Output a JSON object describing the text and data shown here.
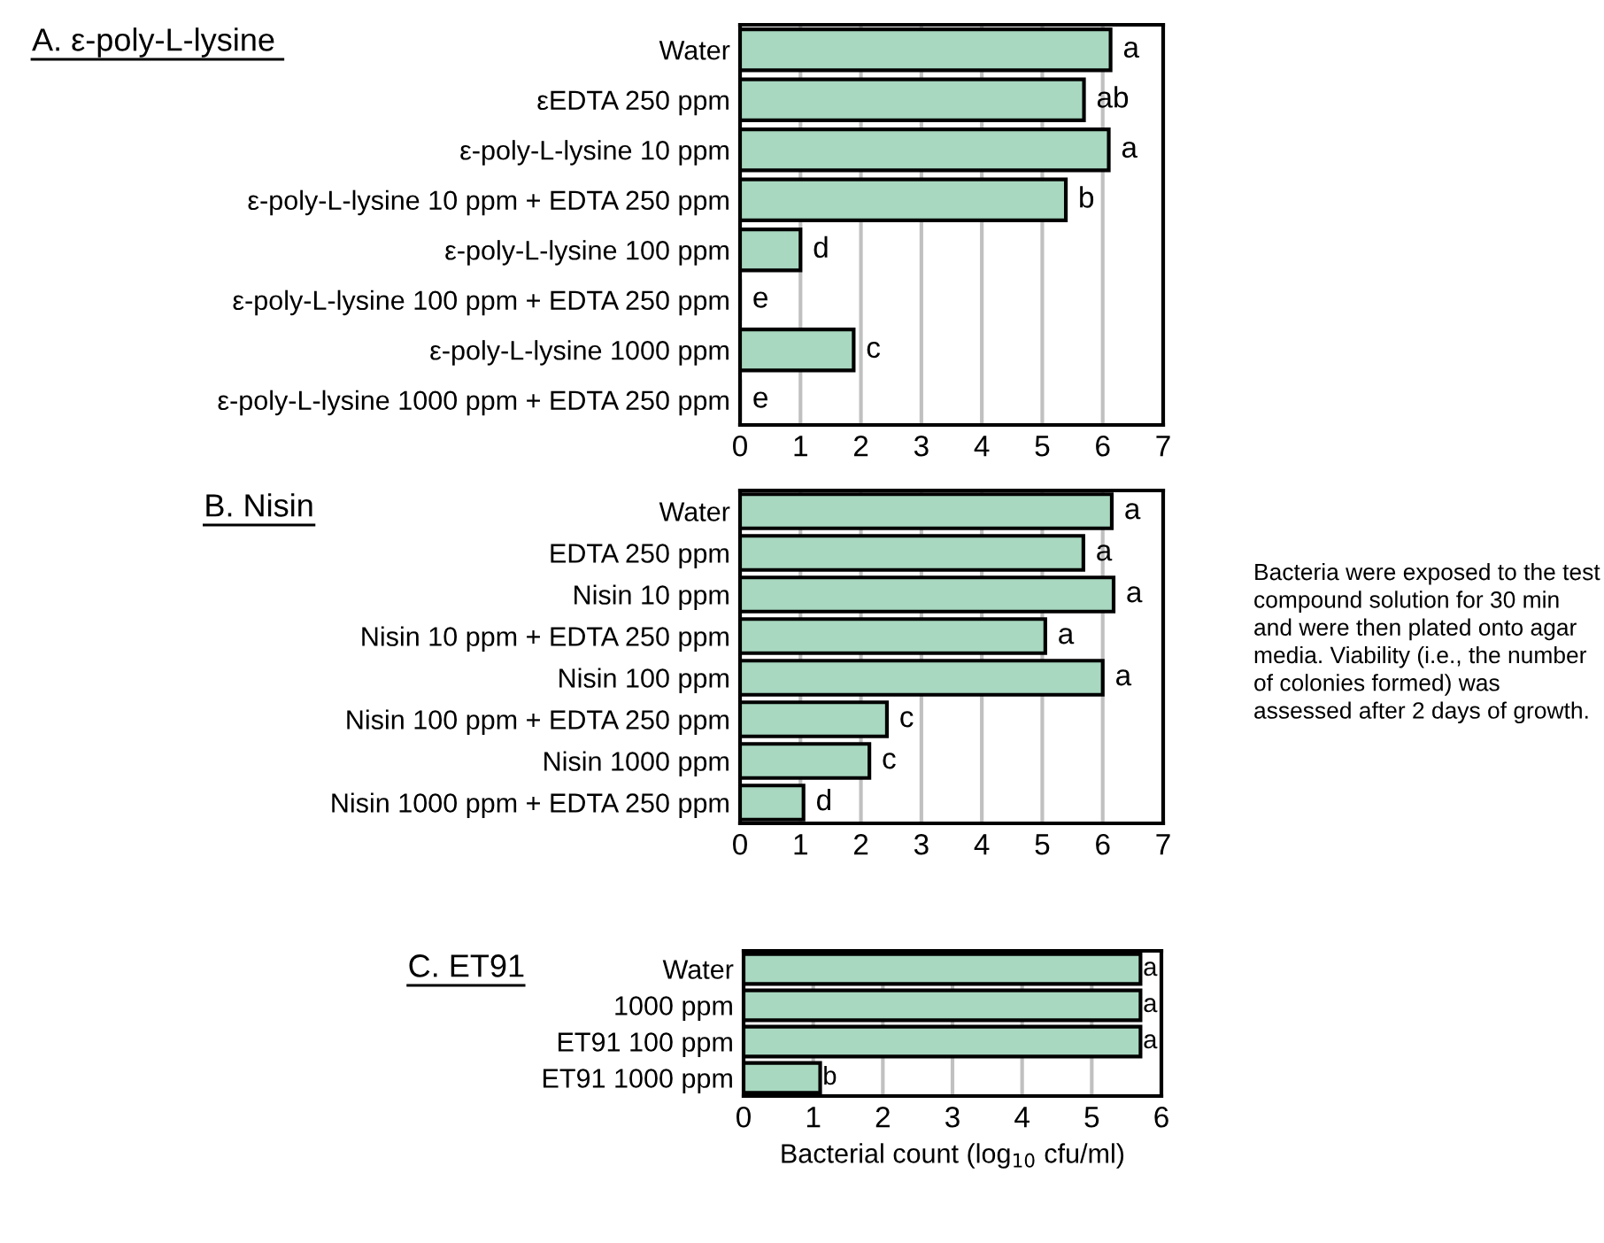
{
  "chart_data": [
    {
      "type": "bar",
      "orientation": "horizontal",
      "title": "A. ε-poly-L-lysine ",
      "categories": [
        "Water",
        "εEDTA 250 ppm",
        "ε-poly-L-lysine 10 ppm",
        "ε-poly-L-lysine 10 ppm + EDTA 250 ppm",
        "ε-poly-L-lysine 100 ppm",
        "ε-poly-L-lysine 100 ppm + EDTA 250 ppm",
        "ε-poly-L-lysine 1000 ppm",
        "ε-poly-L-lysine 1000 ppm + EDTA 250 ppm"
      ],
      "values": [
        6.13,
        5.69,
        6.1,
        5.39,
        1.0,
        0,
        1.88,
        0
      ],
      "value_labels": [
        "a",
        "ab",
        "a",
        "b",
        "d",
        "e",
        "c",
        "e"
      ],
      "color": "#a8d8c0",
      "xlim": [
        0,
        7
      ],
      "xticks": [
        0,
        1,
        2,
        3,
        4,
        5,
        6,
        7
      ],
      "grid": "x"
    },
    {
      "type": "bar",
      "orientation": "horizontal",
      "title": "B. Nisin",
      "categories": [
        "Water",
        "EDTA 250 ppm",
        "Nisin 10 ppm",
        "Nisin 10 ppm + EDTA 250 ppm",
        "Nisin 100 ppm",
        "Nisin 100 ppm + EDTA 250 ppm",
        "Nisin 1000 ppm",
        "Nisin 1000 ppm + EDTA 250 ppm"
      ],
      "values": [
        6.15,
        5.68,
        6.18,
        5.05,
        6.0,
        2.43,
        2.14,
        1.05
      ],
      "value_labels": [
        "a",
        "a",
        "a",
        "a",
        "a",
        "c",
        "c",
        "d"
      ],
      "color": "#a8d8c0",
      "xlim": [
        0,
        7
      ],
      "xticks": [
        0,
        1,
        2,
        3,
        4,
        5,
        6,
        7
      ],
      "grid": "x",
      "annotations": [
        "Bacteria were exposed to the test compound solution for 30 min and were then plated onto agar media. Viability (i.e., the number of colonies formed) was assessed after 2 days of growth."
      ]
    },
    {
      "type": "bar",
      "orientation": "horizontal",
      "title": "C. ET91",
      "categories": [
        "Water",
        "1000 ppm",
        "ET91 100 ppm",
        "ET91 1000 ppm"
      ],
      "values": [
        5.7,
        5.7,
        5.7,
        1.1
      ],
      "value_labels": [
        "a",
        "a",
        "a",
        "b"
      ],
      "color": "#a8d8c0",
      "xlim": [
        0,
        6
      ],
      "xticks": [
        0,
        1,
        2,
        3,
        4,
        5,
        6
      ],
      "grid": "x",
      "xlabel": "Bacterial count (log$_{10}$ cfu/ml)"
    }
  ]
}
